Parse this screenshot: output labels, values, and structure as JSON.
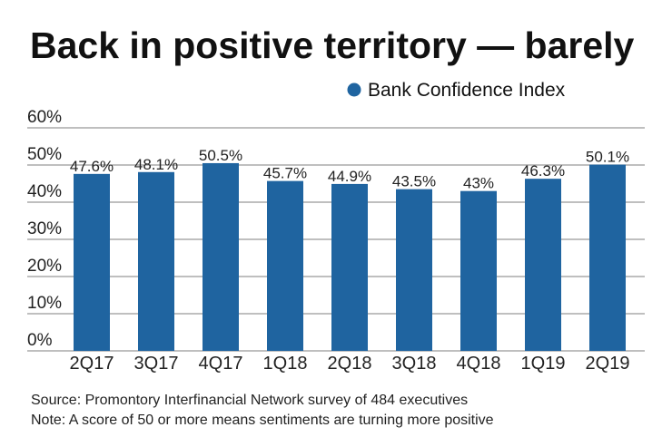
{
  "chart_data": {
    "type": "bar",
    "title": "Back in positive territory — barely",
    "categories": [
      "2Q17",
      "3Q17",
      "4Q17",
      "1Q18",
      "2Q18",
      "3Q18",
      "4Q18",
      "1Q19",
      "2Q19"
    ],
    "series": [
      {
        "name": "Bank Confidence Index",
        "values": [
          47.6,
          48.1,
          50.5,
          45.7,
          44.9,
          43.5,
          43,
          46.3,
          50.1
        ],
        "color": "#1f64a0"
      }
    ],
    "data_labels": [
      "47.6%",
      "48.1%",
      "50.5%",
      "45.7%",
      "44.9%",
      "43.5%",
      "43%",
      "46.3%",
      "50.1%"
    ],
    "yticks": [
      "0%",
      "10%",
      "20%",
      "30%",
      "40%",
      "50%",
      "60%"
    ],
    "ylim": [
      0,
      60
    ],
    "grid": true,
    "legend_position": "top-right",
    "xlabel": "",
    "ylabel": ""
  },
  "footer": {
    "source": "Source: Promontory Interfinancial Network survey of 484 executives",
    "note": "Note: A score of 50 or more means sentiments are turning more positive"
  }
}
